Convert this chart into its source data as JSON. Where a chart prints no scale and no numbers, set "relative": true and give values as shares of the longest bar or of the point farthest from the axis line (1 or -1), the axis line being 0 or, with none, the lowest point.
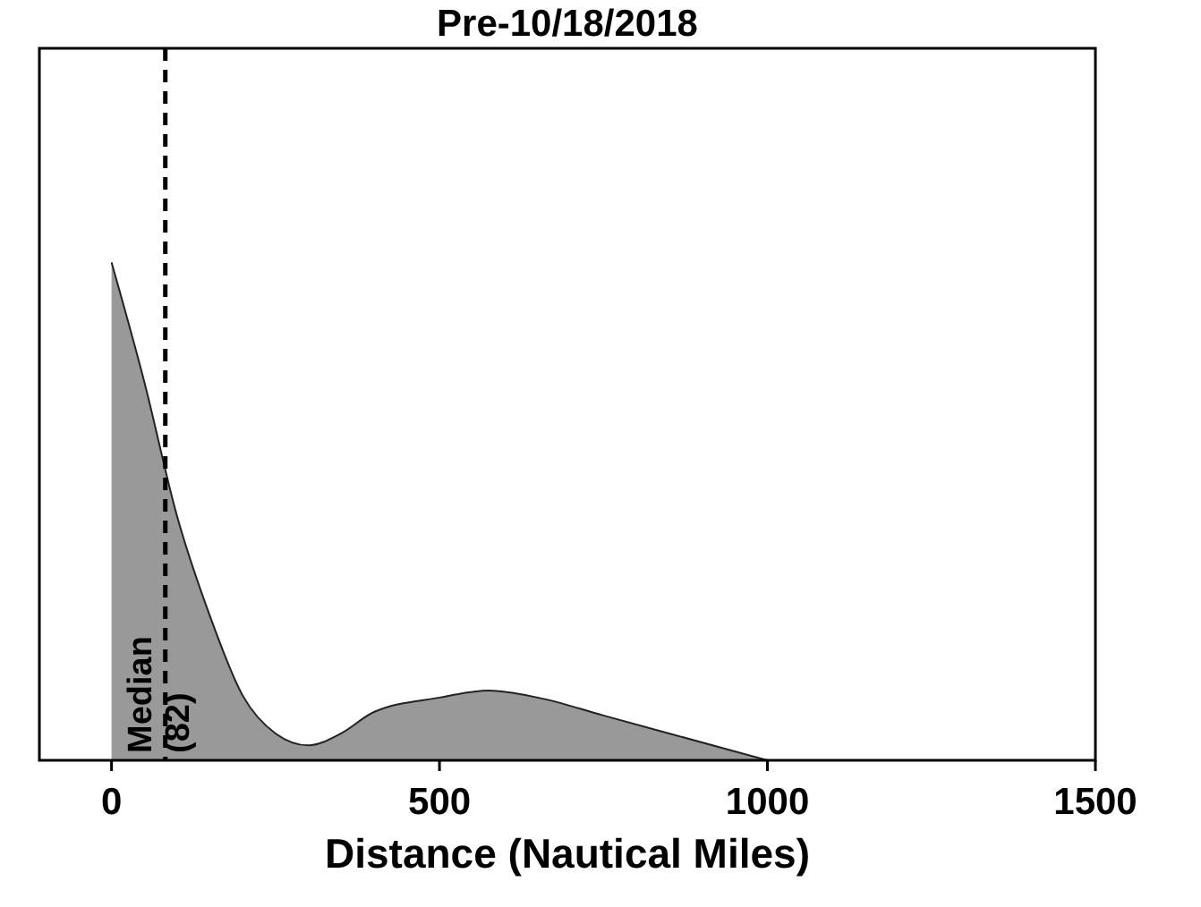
{
  "chart_data": {
    "type": "area",
    "title": "Pre-10/18/2018",
    "xlabel": "Distance (Nautical Miles)",
    "relative": true,
    "x": [
      0,
      50,
      100,
      150,
      200,
      250,
      300,
      350,
      400,
      500,
      575,
      650,
      750,
      850,
      950,
      1000
    ],
    "series": [
      {
        "color": "#999999",
        "values": [
          1.0,
          0.76,
          0.49,
          0.29,
          0.13,
          0.054,
          0.03,
          0.054,
          0.097,
          0.126,
          0.14,
          0.126,
          0.09,
          0.054,
          0.018,
          0
        ]
      }
    ],
    "xlim": [
      -110,
      1500
    ],
    "xticks": [
      0,
      500,
      1000,
      1500
    ],
    "ref_lines": [
      {
        "axis": "x",
        "value": 82,
        "label": "Median (82)",
        "line_style": "dashed",
        "color": "#000000"
      }
    ]
  }
}
